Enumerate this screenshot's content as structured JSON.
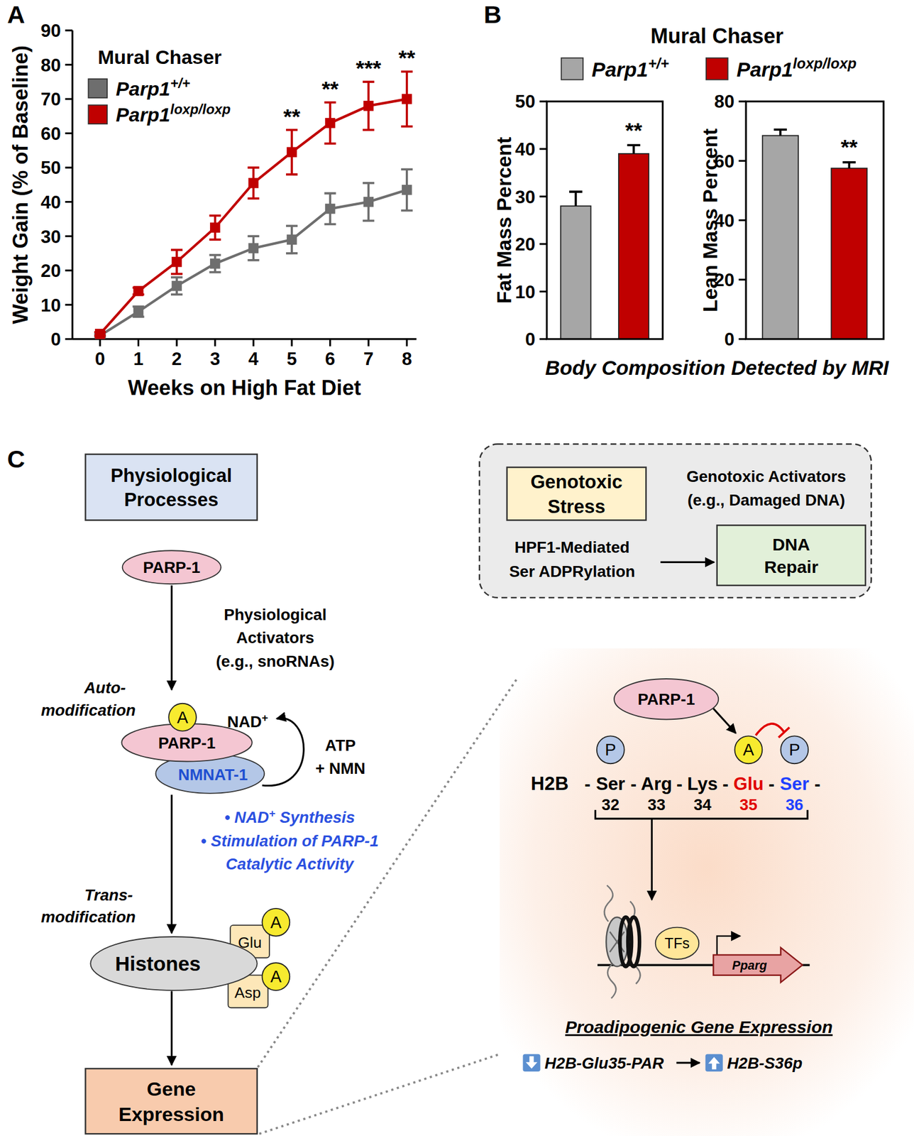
{
  "panel_labels": [
    "A",
    "B",
    "C"
  ],
  "chart_data": [
    {
      "type": "line",
      "legend_title": "Mural Chaser",
      "xlabel": "Weeks on High Fat Diet",
      "ylabel": "Weight Gain (% of Baseline)",
      "x": [
        0,
        1,
        2,
        3,
        4,
        5,
        6,
        7,
        8
      ],
      "xlim": [
        -0.72,
        8.25
      ],
      "ylim": [
        0,
        90
      ],
      "xticks": [
        0,
        1,
        2,
        3,
        4,
        5,
        6,
        7,
        8
      ],
      "yticks": [
        0,
        10,
        20,
        30,
        40,
        50,
        60,
        70,
        80,
        90
      ],
      "grid": false,
      "marker": "square",
      "series": [
        {
          "name": "Parp1+/+",
          "color": "#6e6e6e",
          "values": [
            1,
            8,
            15.5,
            22,
            26.5,
            29,
            38,
            40,
            43.5
          ],
          "errors": [
            0.5,
            1.5,
            2.5,
            2.5,
            3.5,
            4,
            4.5,
            5.5,
            6
          ]
        },
        {
          "name": "Parp1loxp/loxp",
          "color": "#c00000",
          "values": [
            1.5,
            14,
            22.5,
            32.5,
            45.5,
            54.5,
            63,
            68,
            70
          ],
          "errors": [
            0.5,
            1,
            3.5,
            3.5,
            4.5,
            6.5,
            6,
            7,
            8
          ]
        }
      ],
      "annotations": [
        {
          "x": 5,
          "text": "**"
        },
        {
          "x": 6,
          "text": "**"
        },
        {
          "x": 7,
          "text": "***"
        },
        {
          "x": 8,
          "text": "**"
        }
      ]
    },
    {
      "type": "bar",
      "ylabel": "Fat Mass Percent",
      "categories": [
        null
      ],
      "ylim": [
        0,
        50
      ],
      "yticks": [
        0,
        10,
        20,
        30,
        40,
        50
      ],
      "series": [
        {
          "name": "Parp1+/+",
          "color": "#a6a6a6",
          "values": [
            28
          ],
          "errors": [
            3
          ]
        },
        {
          "name": "Parp1loxp/loxp",
          "color": "#c00000",
          "values": [
            39
          ],
          "errors": [
            1.8
          ]
        }
      ],
      "annotations": [
        {
          "series": 1,
          "text": "**"
        }
      ]
    },
    {
      "type": "bar",
      "ylabel": "Lean Mass Percent",
      "categories": [
        null
      ],
      "ylim": [
        0,
        80
      ],
      "yticks": [
        0,
        20,
        40,
        60,
        80
      ],
      "series": [
        {
          "color": "#a6a6a6",
          "values": [
            68.5
          ],
          "errors": [
            2
          ]
        },
        {
          "color": "#c00000",
          "values": [
            57.5
          ],
          "errors": [
            2
          ]
        }
      ],
      "annotations": [
        {
          "series": 1,
          "text": "**"
        }
      ]
    }
  ],
  "panel_b": {
    "title": "Mural Chaser",
    "caption": "Body Composition Detected by MRI"
  },
  "diagram": {
    "physiological": {
      "title_lines": [
        "Physiological",
        "Processes"
      ],
      "parp1": "PARP-1",
      "activators": [
        "Physiological",
        "Activators",
        "(e.g., snoRNAs)"
      ],
      "auto_label": [
        "Auto-",
        "modification"
      ],
      "complex": {
        "parp1": "PARP-1",
        "nmnat1": "NMNAT-1",
        "mark": "A",
        "nad": "NAD+",
        "substrates": [
          "ATP",
          "+ NMN"
        ]
      },
      "functions": [
        "• NAD+ Synthesis",
        "• Stimulation of PARP-1",
        "Catalytic Activity"
      ],
      "trans_label": [
        "Trans-",
        "modification"
      ],
      "histones": "Histones",
      "residues": [
        "Glu",
        "Asp"
      ],
      "mark": "A",
      "output_lines": [
        "Gene",
        "Expression"
      ]
    },
    "genotoxic": {
      "title_lines": [
        "Genotoxic",
        "Stress"
      ],
      "activators": [
        "Genotoxic Activators",
        "(e.g., Damaged DNA)"
      ],
      "mechanism": [
        "HPF1-Mediated",
        "Ser ADPRylation"
      ],
      "outcome": [
        "DNA",
        "Repair"
      ]
    },
    "detail": {
      "enzyme": "PARP-1",
      "histone": "H2B",
      "separator": "-",
      "residues": [
        {
          "name": "Ser",
          "number": 32,
          "mark": "P"
        },
        {
          "name": "Arg",
          "number": 33
        },
        {
          "name": "Lys",
          "number": 34
        },
        {
          "name": "Glu",
          "number": 35,
          "mark": "A",
          "color": "#e00000"
        },
        {
          "name": "Ser",
          "number": 36,
          "mark": "P",
          "color": "#1f3fff"
        }
      ],
      "tfs": "TFs",
      "gene": "Pparg",
      "caption": "Proadipogenic Gene Expression",
      "change": {
        "down": "H2B-Glu35-PAR",
        "up": "H2B-S36p"
      }
    }
  }
}
